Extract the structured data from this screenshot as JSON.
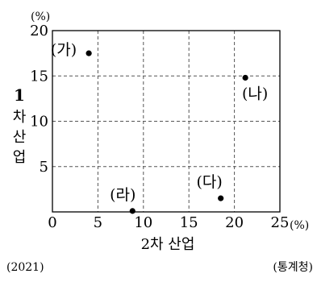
{
  "chart_data": {
    "type": "scatter",
    "xlabel": "2차 산업",
    "ylabel_top": "1",
    "ylabel_chars": [
      "차",
      "산",
      "업"
    ],
    "x_unit": "(%)",
    "y_unit": "(%)",
    "xlim": [
      0,
      25
    ],
    "ylim": [
      0,
      20
    ],
    "x_ticks": [
      0,
      5,
      10,
      15,
      20,
      25
    ],
    "y_ticks": [
      5,
      10,
      15,
      20
    ],
    "grid": true,
    "grid_style": "dashed",
    "points": [
      {
        "label": "(가)",
        "x": 4.0,
        "y": 17.5
      },
      {
        "label": "(나)",
        "x": 21.2,
        "y": 14.8
      },
      {
        "label": "(다)",
        "x": 18.5,
        "y": 1.5
      },
      {
        "label": "(라)",
        "x": 8.8,
        "y": 0.1
      }
    ],
    "year_note": "(2021)",
    "source_note": "(통계청)"
  }
}
